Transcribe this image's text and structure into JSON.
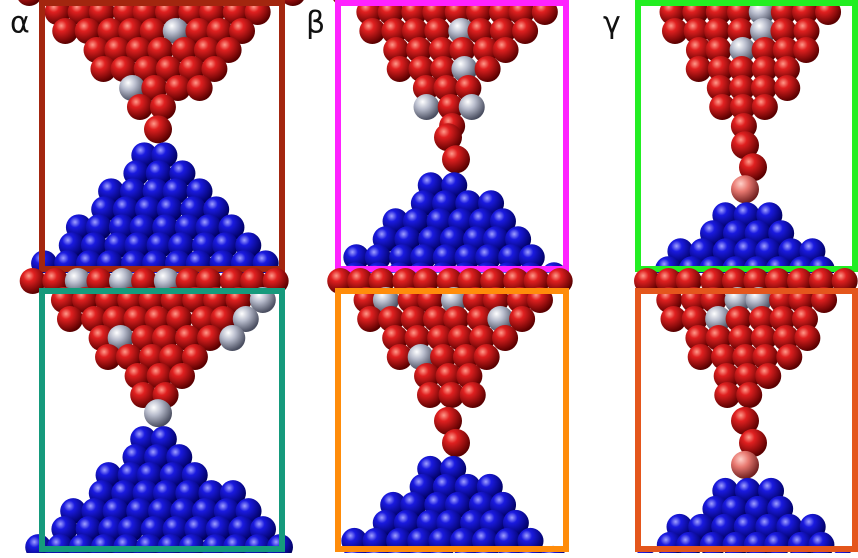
{
  "labels": [
    "α",
    "β",
    "γ"
  ]
}
